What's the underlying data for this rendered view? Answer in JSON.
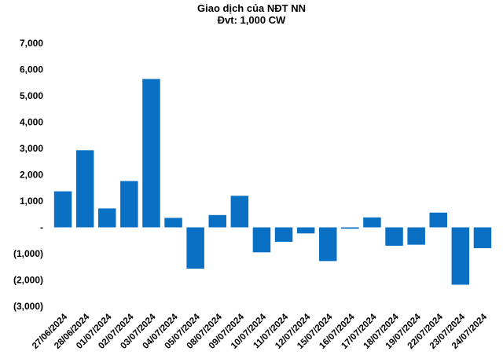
{
  "chart_data": {
    "type": "bar",
    "title": "Giao dịch của NĐT NN",
    "subtitle": "Đvt: 1,000 CW",
    "xlabel": "",
    "ylabel": "",
    "ylim": [
      -3000,
      7000
    ],
    "yticks": [
      7000,
      6000,
      5000,
      4000,
      3000,
      2000,
      1000,
      0,
      -1000,
      -2000,
      -3000
    ],
    "ytick_labels": [
      "7,000",
      "6,000",
      "5,000",
      "4,000",
      "3,000",
      "2,000",
      "1,000",
      "-",
      "(1,000)",
      "(2,000)",
      "(3,000)"
    ],
    "categories": [
      "27/06/2024",
      "28/06/2024",
      "01/07/2024",
      "02/07/2024",
      "03/07/2024",
      "04/07/2024",
      "05/07/2024",
      "08/07/2024",
      "09/07/2024",
      "10/07/2024",
      "11/07/2024",
      "12/07/2024",
      "15/07/2024",
      "16/07/2024",
      "17/07/2024",
      "18/07/2024",
      "19/07/2024",
      "22/07/2024",
      "23/07/2024",
      "24/07/2024"
    ],
    "values": [
      1370,
      2930,
      720,
      1760,
      5640,
      360,
      -1570,
      470,
      1200,
      -950,
      -550,
      -230,
      -1280,
      -50,
      380,
      -700,
      -660,
      560,
      -2180,
      -790
    ],
    "grid": false,
    "legend": "none",
    "bar_color": "#0a70c4"
  }
}
